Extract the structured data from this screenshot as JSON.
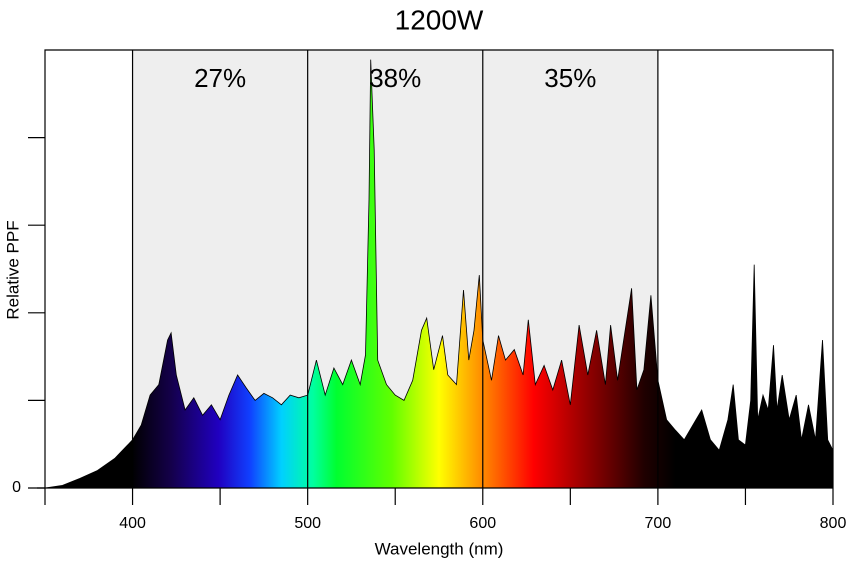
{
  "chart_data": {
    "type": "area",
    "title": "1200W",
    "x_label": "Wavelength (nm)",
    "y_label": "Relative PPF",
    "x": [
      350,
      360,
      370,
      380,
      390,
      400,
      405,
      410,
      415,
      420,
      422,
      425,
      430,
      435,
      440,
      445,
      450,
      455,
      460,
      465,
      470,
      475,
      480,
      485,
      490,
      495,
      500,
      505,
      510,
      515,
      520,
      525,
      530,
      533,
      535,
      536,
      538,
      540,
      545,
      550,
      555,
      560,
      565,
      568,
      572,
      577,
      580,
      585,
      589,
      592,
      595,
      598,
      600,
      605,
      609,
      613,
      618,
      623,
      626,
      630,
      635,
      640,
      645,
      650,
      655,
      660,
      665,
      670,
      673,
      677,
      680,
      685,
      688,
      692,
      696,
      700,
      705,
      710,
      715,
      720,
      725,
      730,
      735,
      740,
      743,
      746,
      750,
      753,
      755,
      757,
      760,
      763,
      766,
      768,
      771,
      775,
      779,
      782,
      786,
      790,
      794,
      797,
      800
    ],
    "values": [
      0,
      0.03,
      0.11,
      0.2,
      0.34,
      0.55,
      0.72,
      1.06,
      1.18,
      1.69,
      1.77,
      1.29,
      0.89,
      1.03,
      0.83,
      0.95,
      0.78,
      1.06,
      1.29,
      1.14,
      1.0,
      1.08,
      1.03,
      0.95,
      1.06,
      1.03,
      1.06,
      1.46,
      1.06,
      1.37,
      1.18,
      1.46,
      1.18,
      1.52,
      3.29,
      4.89,
      3.86,
      1.46,
      1.18,
      1.06,
      1.0,
      1.23,
      1.8,
      1.94,
      1.35,
      1.74,
      1.29,
      1.18,
      2.26,
      1.46,
      1.8,
      2.43,
      1.69,
      1.23,
      1.74,
      1.46,
      1.58,
      1.29,
      1.92,
      1.18,
      1.4,
      1.12,
      1.46,
      0.95,
      1.86,
      1.29,
      1.8,
      1.18,
      1.86,
      1.23,
      1.63,
      2.28,
      1.12,
      1.35,
      2.2,
      1.23,
      0.78,
      0.66,
      0.55,
      0.72,
      0.89,
      0.55,
      0.43,
      0.78,
      1.18,
      0.55,
      0.49,
      1.0,
      2.55,
      0.78,
      1.06,
      0.89,
      1.63,
      0.89,
      1.29,
      0.78,
      1.06,
      0.55,
      0.95,
      0.55,
      1.69,
      0.55,
      0.43
    ],
    "xlim": [
      350,
      800
    ],
    "ylim": [
      0,
      5
    ],
    "xticks": [
      400,
      500,
      600,
      700,
      800
    ],
    "xminorticks": [
      350,
      450,
      550,
      650,
      750
    ],
    "yticks": [
      0
    ],
    "yminorticks": [
      1,
      2,
      3,
      4
    ],
    "regions": {
      "edges": [
        400,
        500,
        600,
        700
      ],
      "values": [
        27,
        38,
        35
      ],
      "value_labels": [
        "27%",
        "38%",
        "35%"
      ],
      "color": "#eeeeee"
    }
  }
}
